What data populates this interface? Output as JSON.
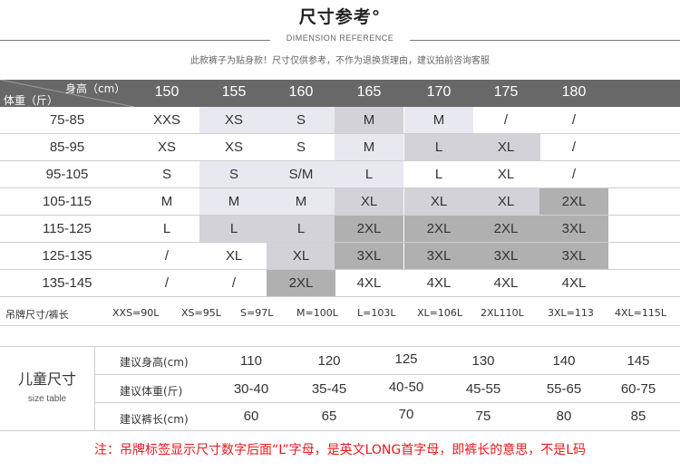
{
  "header": {
    "title": "尺寸参考°",
    "subtitle": "DIMENSION REFERENCE",
    "note": "此款裤子为贴身款！尺寸仅供参考，不作为退换货理由，建议拍前咨询客服"
  },
  "adult_table": {
    "height_label": "身高（cm）",
    "weight_label": "体重（斤）",
    "heights": [
      "150",
      "155",
      "160",
      "165",
      "170",
      "175",
      "180"
    ],
    "rows": [
      {
        "weight": "75-85",
        "sizes": [
          "XXS",
          "XS",
          "S",
          "M",
          "M",
          "/",
          "/"
        ]
      },
      {
        "weight": "85-95",
        "sizes": [
          "XS",
          "XS",
          "S",
          "M",
          "L",
          "XL",
          "/"
        ]
      },
      {
        "weight": "95-105",
        "sizes": [
          "S",
          "S",
          "S/M",
          "L",
          "L",
          "XL",
          "/"
        ]
      },
      {
        "weight": "105-115",
        "sizes": [
          "M",
          "M",
          "M",
          "XL",
          "XL",
          "XL",
          "2XL"
        ]
      },
      {
        "weight": "115-125",
        "sizes": [
          "L",
          "L",
          "L",
          "2XL",
          "2XL",
          "2XL",
          "3XL"
        ]
      },
      {
        "weight": "125-135",
        "sizes": [
          "/",
          "XL",
          "XL",
          "3XL",
          "3XL",
          "3XL",
          "3XL"
        ]
      },
      {
        "weight": "135-145",
        "sizes": [
          "/",
          "/",
          "2XL",
          "4XL",
          "4XL",
          "4XL",
          "4XL"
        ]
      }
    ],
    "colors": {
      "header_bg": "#686868",
      "light": "#e8e8f0",
      "mid": "#d2d2d8",
      "dark": "#b0b0b0",
      "darker": "#9c9c9c"
    }
  },
  "tag_length": {
    "label": "吊牌尺寸/裤长",
    "items": [
      "XXS=90L",
      "XS=95L",
      "S=97L",
      "M=100L",
      "L=103L",
      "XL=106L",
      "2XL110L",
      "3XL=113",
      "4XL=115L"
    ]
  },
  "kids_table": {
    "title": "儿童尺寸",
    "subtitle": "size table",
    "rows": [
      {
        "label": "建议身高(cm)",
        "values": [
          "110",
          "120",
          "125",
          "130",
          "140",
          "145"
        ]
      },
      {
        "label": "建议体重(斤)",
        "values": [
          "30-40",
          "35-45",
          "40-50",
          "45-55",
          "55-65",
          "60-75"
        ]
      },
      {
        "label": "建议裤长(cm)",
        "values": [
          "60",
          "65",
          "70",
          "75",
          "80",
          "85"
        ]
      }
    ]
  },
  "footer": {
    "note": "注：吊牌标签显示尺寸数字后面“L”字母，是英文LONG首字母，即裤长的意思，不是L码"
  }
}
